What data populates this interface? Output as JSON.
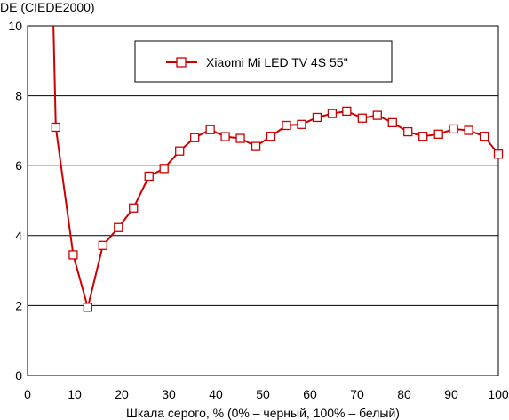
{
  "chart_data": {
    "type": "line",
    "title": "",
    "ylabel": "DE (CIEDE2000)",
    "xlabel": "Шкала серого, % (0% – черный, 100% – белый)",
    "xlim": [
      0,
      100
    ],
    "ylim": [
      0,
      10
    ],
    "xticks": [
      0,
      10,
      20,
      30,
      40,
      50,
      60,
      70,
      80,
      90,
      100
    ],
    "yticks": [
      0,
      2,
      4,
      6,
      8,
      10
    ],
    "grid": "horizontal",
    "legend_position": "top-center",
    "colors": {
      "series": "#cc0000",
      "marker_fill": "#ffffff",
      "grid": "#000000"
    },
    "series": [
      {
        "name": "Xiaomi Mi LED TV 4S 55''",
        "x": [
          6.0,
          9.7,
          12.8,
          16.0,
          19.3,
          22.5,
          25.8,
          29.0,
          32.3,
          35.5,
          38.8,
          42.0,
          45.2,
          48.5,
          51.7,
          55.0,
          58.2,
          61.5,
          64.7,
          67.8,
          71.1,
          74.3,
          77.5,
          80.8,
          84.0,
          87.3,
          90.5,
          93.7,
          97.0,
          100.0
        ],
        "y": [
          7.1,
          3.45,
          1.95,
          3.72,
          4.23,
          4.79,
          5.7,
          5.92,
          6.42,
          6.8,
          7.03,
          6.83,
          6.78,
          6.55,
          6.84,
          7.15,
          7.18,
          7.38,
          7.49,
          7.56,
          7.36,
          7.44,
          7.23,
          6.97,
          6.84,
          6.9,
          7.05,
          7.01,
          6.84,
          6.33
        ]
      }
    ],
    "leading_segment": {
      "x": 5.5,
      "y": 10.0
    }
  }
}
